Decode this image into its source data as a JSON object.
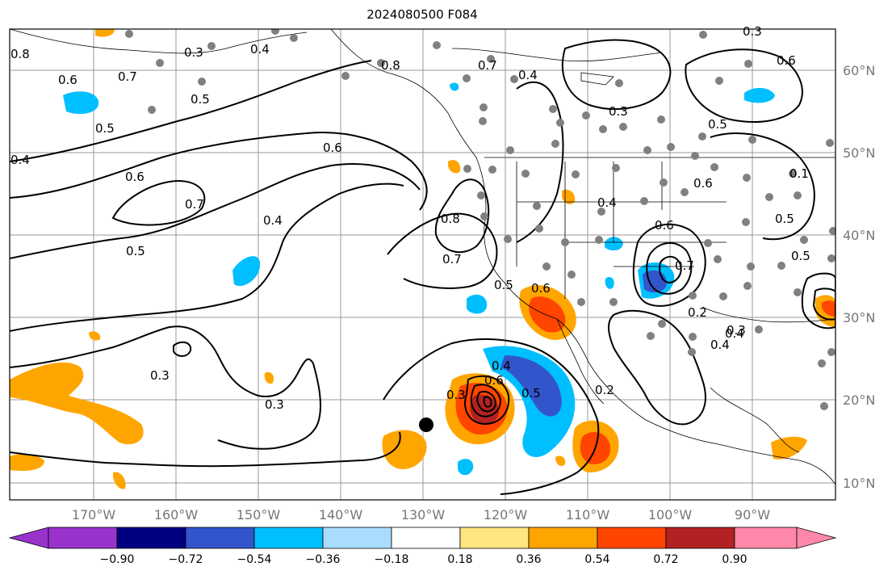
{
  "title": "2024080500 F084",
  "map": {
    "lon_labels": [
      "170°W",
      "160°W",
      "150°W",
      "140°W",
      "130°W",
      "120°W",
      "110°W",
      "100°W",
      "90°W"
    ],
    "lat_labels": [
      "60°N",
      "50°N",
      "40°N",
      "30°N",
      "20°N",
      "10°N"
    ],
    "contour_labels": [
      "0.8",
      "0.6",
      "0.7",
      "0.3",
      "0.4",
      "0.5",
      "0.5",
      "0.4",
      "0.6",
      "0.6",
      "0.7",
      "0.5",
      "0.4",
      "0.8",
      "0.7",
      "0.3",
      "0.3",
      "0.4",
      "0.6",
      "0.5",
      "0.3",
      "0.3",
      "0.2",
      "0.6",
      "0.5",
      "0.5",
      "0.4",
      "0.6",
      "0.7",
      "0.4",
      "0.5",
      "0.6",
      "0.2",
      "0.3",
      "0.4",
      "0.6",
      "0.4",
      "0.5",
      "0.7",
      "0.8",
      "0.1",
      "0.3"
    ],
    "colors": {
      "land_outline": "#000000",
      "grid": "#999999",
      "station_dot": "#808080",
      "storm_marker": "#000000"
    }
  },
  "colorbar": {
    "ticks": [
      "−0.90",
      "−0.72",
      "−0.54",
      "−0.36",
      "−0.18",
      "0.18",
      "0.36",
      "0.54",
      "0.72",
      "0.90"
    ],
    "colors": [
      "#9933cc",
      "#000080",
      "#3355cc",
      "#00bfff",
      "#aadcff",
      "#ffffff",
      "#ffe680",
      "#ffa500",
      "#ff4500",
      "#b22222",
      "#ff88aa"
    ]
  }
}
